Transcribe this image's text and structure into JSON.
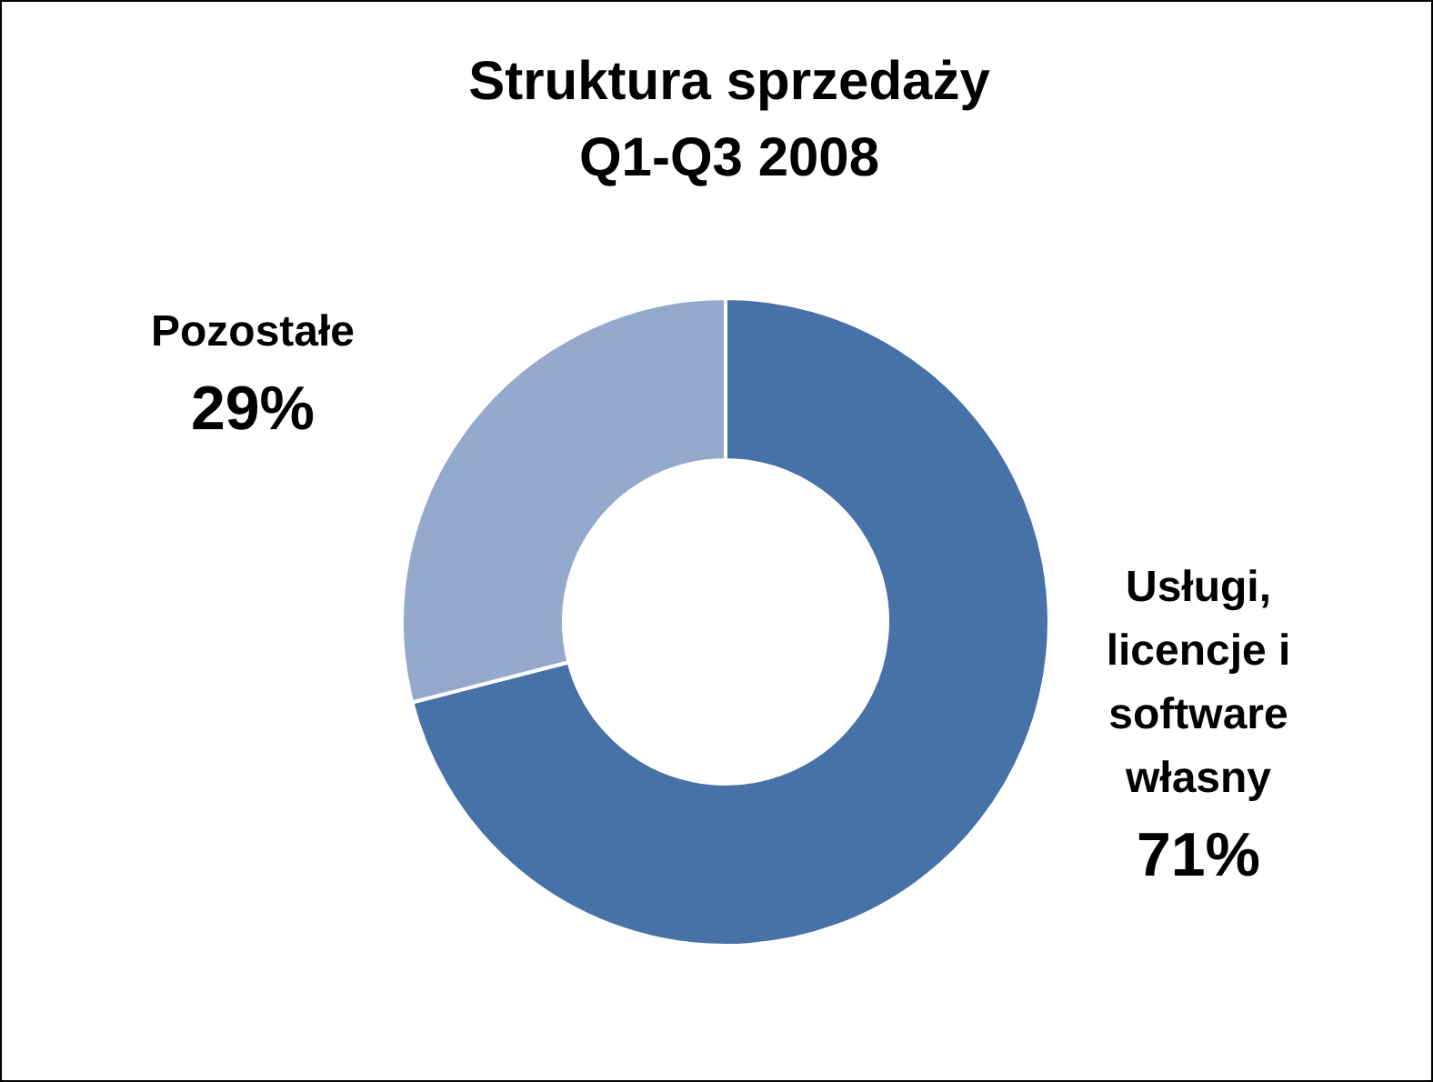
{
  "chart_data": {
    "type": "donut",
    "title": "Struktura sprzedaży Q1-Q3 2008",
    "categories": [
      "Usługi, licencje i software własny",
      "Pozostałe"
    ],
    "values": [
      71,
      29
    ],
    "colors": [
      "#4672a8",
      "#95a9cf"
    ],
    "value_labels": [
      "71%",
      "29%"
    ],
    "legend": false
  }
}
